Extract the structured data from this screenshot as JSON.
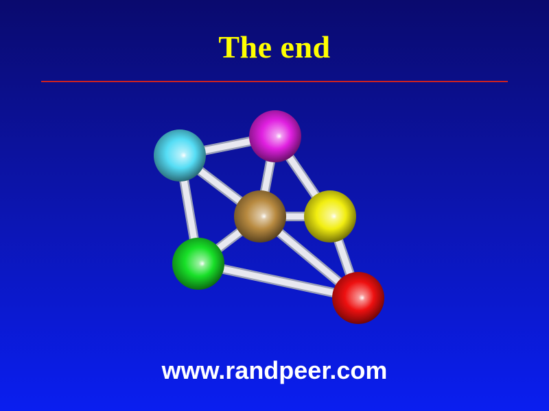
{
  "slide": {
    "title": "The end",
    "url": "www.randpeer.com"
  },
  "colors": {
    "title": "#ffff00",
    "rule": "#cc2222",
    "url": "#ffffff",
    "bond": "#e8e8f0"
  },
  "molecule": {
    "atoms": [
      {
        "name": "cyan-atom",
        "color": "#55ddf5"
      },
      {
        "name": "magenta-atom",
        "color": "#e020e0"
      },
      {
        "name": "brown-atom",
        "color": "#b88a40"
      },
      {
        "name": "yellow-atom",
        "color": "#f2ee10"
      },
      {
        "name": "green-atom",
        "color": "#18e028"
      },
      {
        "name": "red-atom",
        "color": "#ee1010"
      }
    ],
    "bonds": [
      [
        "cyan-atom",
        "magenta-atom"
      ],
      [
        "cyan-atom",
        "brown-atom"
      ],
      [
        "cyan-atom",
        "green-atom"
      ],
      [
        "magenta-atom",
        "brown-atom"
      ],
      [
        "magenta-atom",
        "yellow-atom"
      ],
      [
        "brown-atom",
        "yellow-atom"
      ],
      [
        "brown-atom",
        "green-atom"
      ],
      [
        "brown-atom",
        "red-atom"
      ],
      [
        "yellow-atom",
        "red-atom"
      ],
      [
        "green-atom",
        "red-atom"
      ]
    ]
  }
}
